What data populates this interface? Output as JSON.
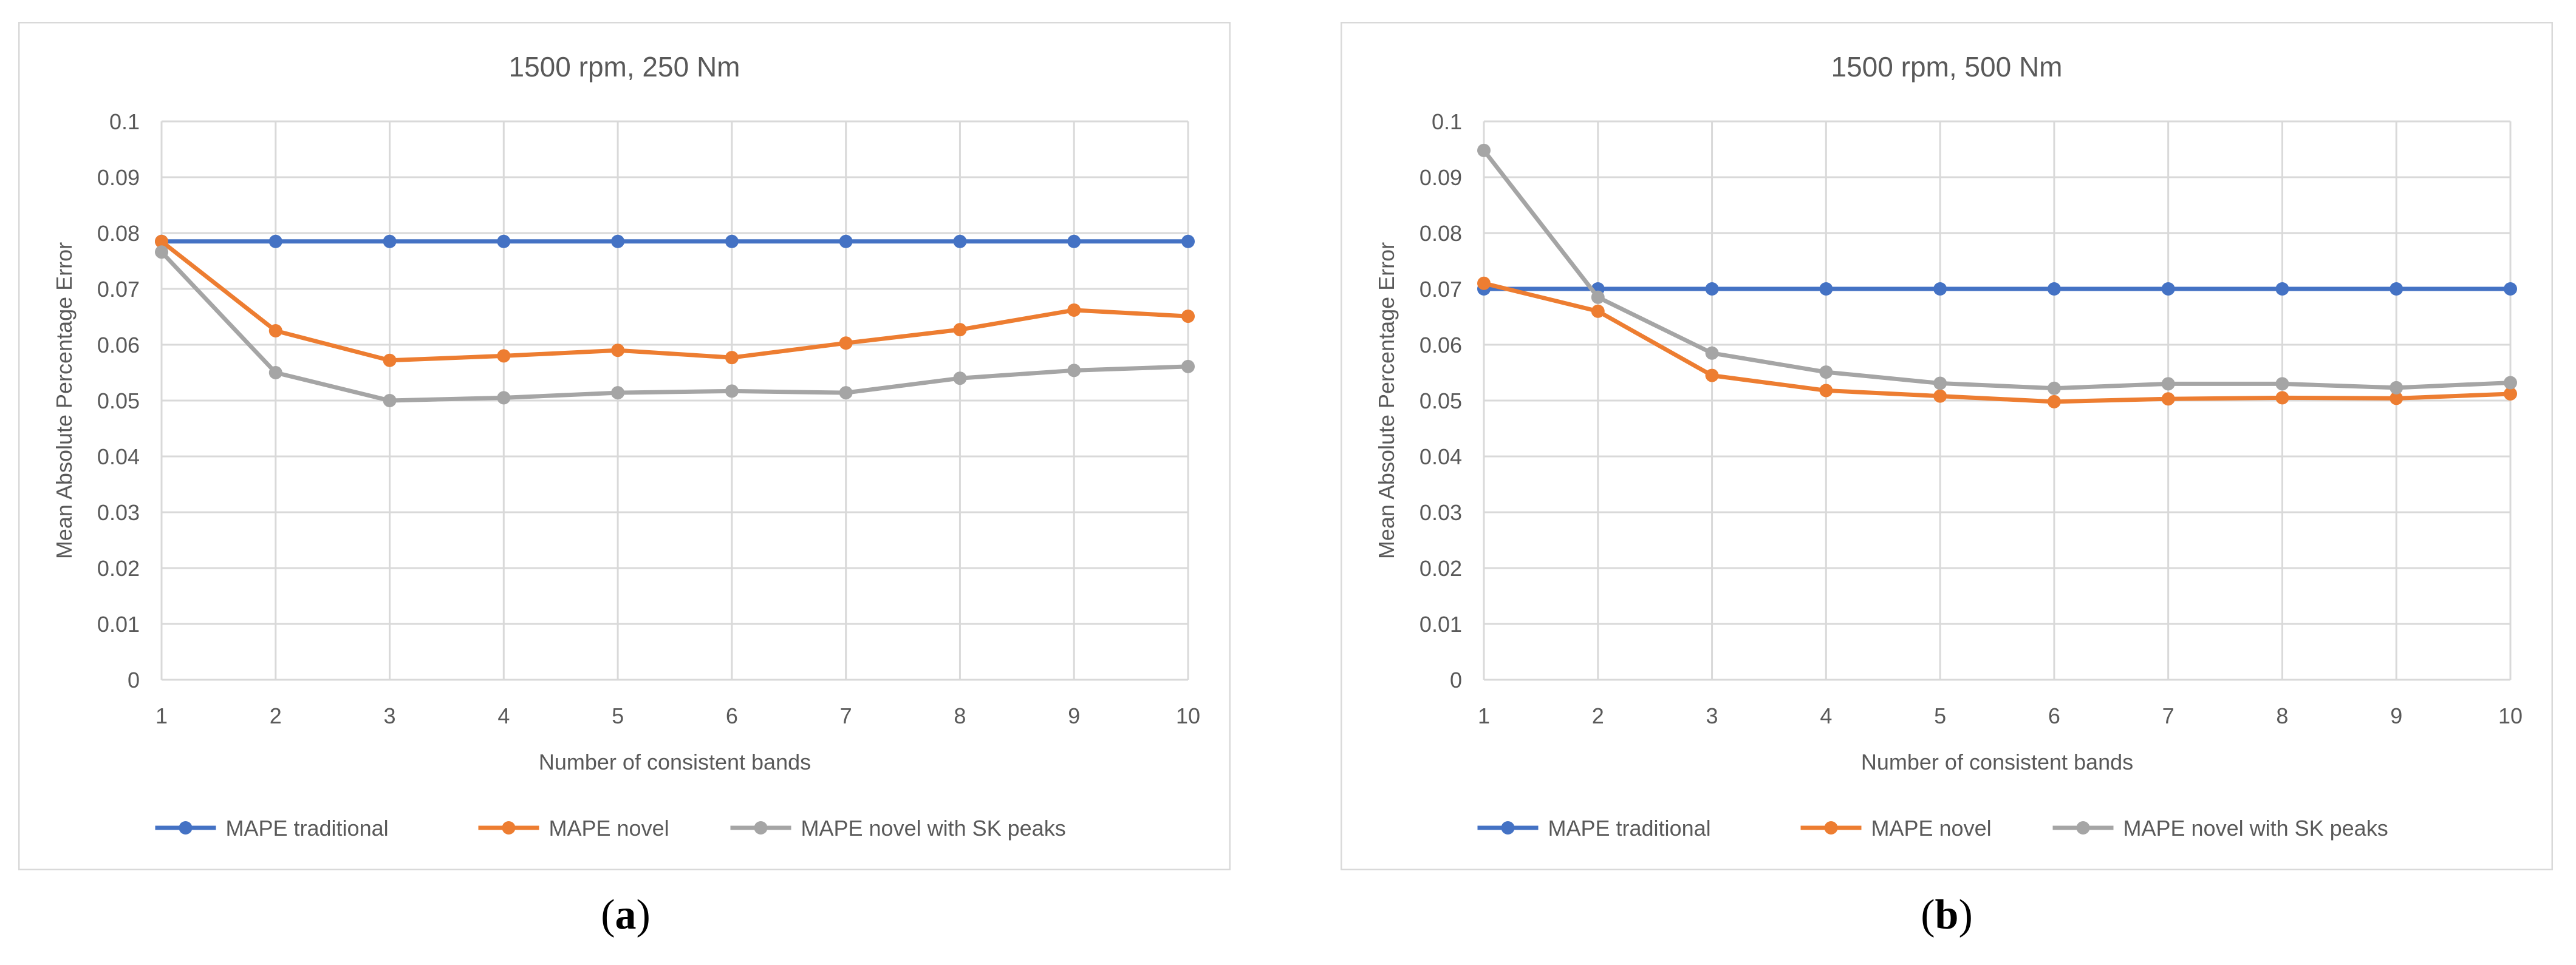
{
  "chart_data": [
    {
      "type": "line",
      "title": "1500 rpm, 250 Nm",
      "xlabel": "Number of consistent bands",
      "ylabel": "Mean Absolute Percentage Error",
      "x": [
        1,
        2,
        3,
        4,
        5,
        6,
        7,
        8,
        9,
        10
      ],
      "ylim": [
        0,
        0.1
      ],
      "yticks": [
        "0",
        "0.01",
        "0.02",
        "0.03",
        "0.04",
        "0.05",
        "0.06",
        "0.07",
        "0.08",
        "0.09",
        "0.1"
      ],
      "xticks": [
        "1",
        "2",
        "3",
        "4",
        "5",
        "6",
        "7",
        "8",
        "9",
        "10"
      ],
      "grid": true,
      "legend_position": "bottom",
      "series": [
        {
          "name": "MAPE traditional",
          "color": "#4472C4",
          "values": [
            0.0785,
            0.0785,
            0.0785,
            0.0785,
            0.0785,
            0.0785,
            0.0785,
            0.0785,
            0.0785,
            0.0785
          ]
        },
        {
          "name": "MAPE novel",
          "color": "#ED7D31",
          "values": [
            0.0785,
            0.0625,
            0.0572,
            0.058,
            0.059,
            0.0577,
            0.0603,
            0.0627,
            0.0662,
            0.0651
          ]
        },
        {
          "name": "MAPE novel with SK peaks",
          "color": "#A5A5A5",
          "values": [
            0.0766,
            0.055,
            0.05,
            0.0505,
            0.0514,
            0.0517,
            0.0514,
            0.054,
            0.0554,
            0.0561
          ]
        }
      ],
      "caption": "a"
    },
    {
      "type": "line",
      "title": "1500 rpm, 500 Nm",
      "xlabel": "Number of consistent bands",
      "ylabel": "Mean Absolute Percentage Error",
      "x": [
        1,
        2,
        3,
        4,
        5,
        6,
        7,
        8,
        9,
        10
      ],
      "ylim": [
        0,
        0.1
      ],
      "yticks": [
        "0",
        "0.01",
        "0.02",
        "0.03",
        "0.04",
        "0.05",
        "0.06",
        "0.07",
        "0.08",
        "0.09",
        "0.1"
      ],
      "xticks": [
        "1",
        "2",
        "3",
        "4",
        "5",
        "6",
        "7",
        "8",
        "9",
        "10"
      ],
      "grid": true,
      "legend_position": "bottom",
      "series": [
        {
          "name": "MAPE traditional",
          "color": "#4472C4",
          "values": [
            0.07,
            0.07,
            0.07,
            0.07,
            0.07,
            0.07,
            0.07,
            0.07,
            0.07,
            0.07
          ]
        },
        {
          "name": "MAPE novel",
          "color": "#ED7D31",
          "values": [
            0.071,
            0.066,
            0.0545,
            0.0518,
            0.0508,
            0.0498,
            0.0503,
            0.0505,
            0.0504,
            0.0512
          ]
        },
        {
          "name": "MAPE novel with SK peaks",
          "color": "#A5A5A5",
          "values": [
            0.0948,
            0.0685,
            0.0585,
            0.0551,
            0.0531,
            0.0522,
            0.053,
            0.053,
            0.0523,
            0.0532
          ]
        }
      ],
      "caption": "b"
    }
  ]
}
